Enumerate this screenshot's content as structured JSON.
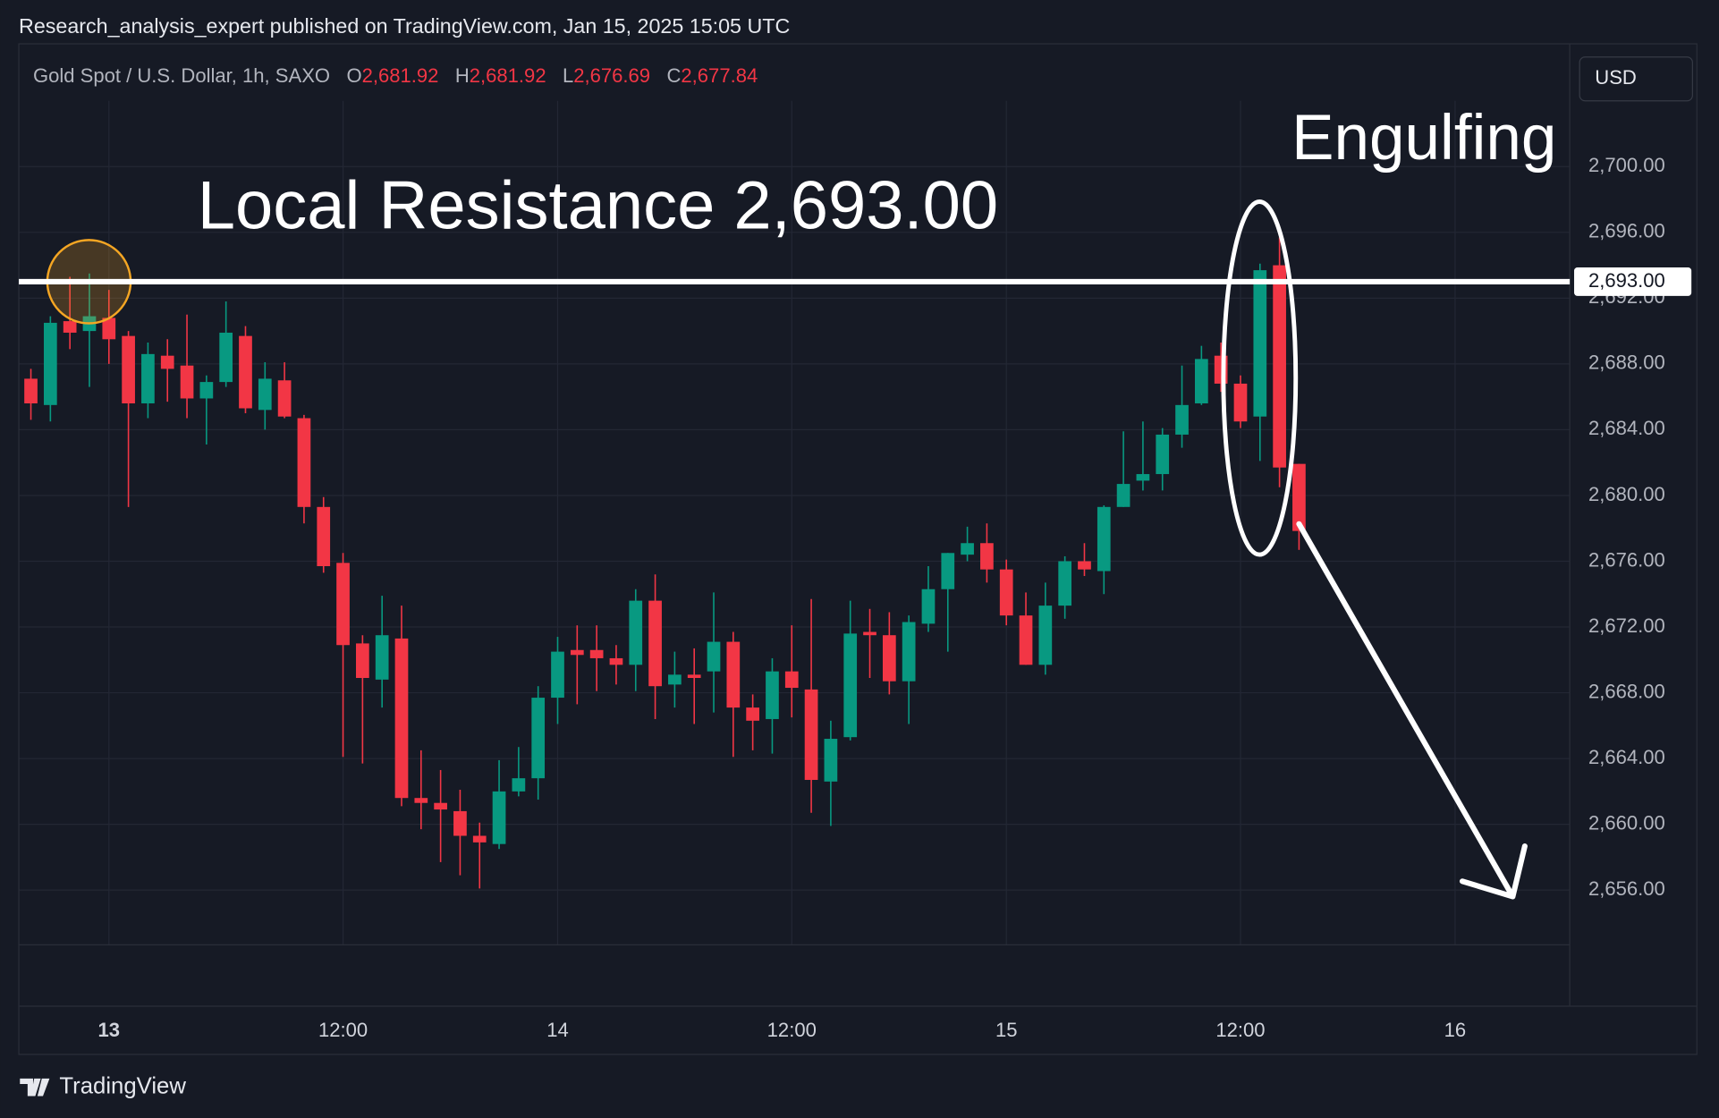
{
  "header": {
    "publisher": "Research_analysis_expert published on TradingView.com, Jan 15, 2025 15:05 UTC",
    "symbol": "Gold Spot / U.S. Dollar, 1h, SAXO",
    "ohlc": [
      {
        "key": "O",
        "value": "2,681.92"
      },
      {
        "key": "H",
        "value": "2,681.92"
      },
      {
        "key": "L",
        "value": "2,676.69"
      },
      {
        "key": "C",
        "value": "2,677.84"
      }
    ],
    "currency": "USD"
  },
  "chart_data": {
    "type": "candlestick",
    "categories": [
      null,
      null,
      null,
      null,
      "13",
      null,
      null,
      null,
      null,
      null,
      null,
      null,
      null,
      null,
      null,
      null,
      "12:00",
      null,
      null,
      null,
      null,
      null,
      null,
      null,
      null,
      null,
      null,
      "14",
      null,
      null,
      null,
      null,
      null,
      null,
      null,
      null,
      null,
      null,
      null,
      "12:00",
      null,
      null,
      null,
      null,
      null,
      null,
      null,
      null,
      null,
      null,
      "15",
      null,
      null,
      null,
      null,
      null,
      null,
      null,
      null,
      null,
      null,
      null,
      "12:00",
      null,
      null,
      null,
      null,
      null,
      null,
      null,
      null,
      null,
      null,
      "16",
      null,
      null,
      null,
      null,
      null
    ],
    "open": [
      2687.1,
      2685.5,
      2690.6,
      2690.0,
      2690.8,
      2689.7,
      2685.6,
      2688.5,
      2687.9,
      2685.9,
      2686.9,
      2689.7,
      2685.2,
      2687.0,
      2684.7,
      2679.3,
      2675.9,
      2671.0,
      2668.8,
      2671.3,
      2661.6,
      2661.3,
      2660.8,
      2659.3,
      2658.8,
      2662.0,
      2662.8,
      2667.7,
      2670.6,
      2670.6,
      2670.1,
      2669.7,
      2673.6,
      2668.5,
      2669.1,
      2669.3,
      2671.1,
      2667.1,
      2666.4,
      2669.3,
      2668.2,
      2662.6,
      2665.3,
      2671.7,
      2671.5,
      2668.7,
      2672.2,
      2674.3,
      2676.4,
      2677.1,
      2675.5,
      2672.7,
      2669.7,
      2673.3,
      2676.0,
      2675.4,
      2679.3,
      2680.9,
      2681.3,
      2683.7,
      2685.6,
      2688.5,
      2686.8,
      2684.8,
      2694.0,
      2681.92,
      null,
      null,
      null,
      null,
      null,
      null,
      null,
      null,
      null,
      null,
      null,
      null,
      null
    ],
    "high": [
      2687.7,
      2690.9,
      2693.3,
      2693.5,
      2692.5,
      2690.0,
      2689.3,
      2689.5,
      2691.0,
      2687.3,
      2691.8,
      2690.3,
      2688.1,
      2688.1,
      2684.9,
      2679.9,
      2676.5,
      2671.5,
      2673.9,
      2673.3,
      2664.5,
      2663.3,
      2662.1,
      2660.1,
      2663.9,
      2664.7,
      2668.4,
      2671.4,
      2672.1,
      2672.1,
      2670.9,
      2674.3,
      2675.2,
      2670.5,
      2670.7,
      2674.1,
      2671.7,
      2667.9,
      2670.1,
      2672.1,
      2673.7,
      2666.3,
      2673.6,
      2673.1,
      2672.9,
      2672.7,
      2675.7,
      2676.5,
      2678.1,
      2678.3,
      2676.1,
      2674.1,
      2674.7,
      2676.3,
      2677.1,
      2679.4,
      2683.9,
      2684.5,
      2684.1,
      2687.9,
      2689.1,
      2689.3,
      2687.3,
      2694.1,
      2695.7,
      2681.92,
      null,
      null,
      null,
      null,
      null,
      null,
      null,
      null,
      null,
      null,
      null,
      null,
      null
    ],
    "low": [
      2684.6,
      2684.5,
      2688.9,
      2686.6,
      2688.0,
      2679.3,
      2684.7,
      2685.7,
      2684.7,
      2683.1,
      2686.6,
      2685.0,
      2684.0,
      2684.7,
      2678.3,
      2675.3,
      2664.1,
      2663.7,
      2667.1,
      2661.1,
      2659.7,
      2657.7,
      2656.9,
      2656.1,
      2658.5,
      2661.7,
      2661.5,
      2666.1,
      2667.3,
      2668.1,
      2668.5,
      2668.1,
      2666.4,
      2667.1,
      2666.1,
      2666.8,
      2664.1,
      2664.5,
      2664.3,
      2666.5,
      2660.7,
      2659.9,
      2665.1,
      2668.9,
      2667.9,
      2666.1,
      2671.7,
      2670.5,
      2676.0,
      2674.7,
      2672.1,
      2669.7,
      2669.1,
      2672.5,
      2675.1,
      2674.0,
      2679.3,
      2680.3,
      2680.3,
      2682.9,
      2685.5,
      2686.3,
      2684.1,
      2682.1,
      2680.5,
      2676.69,
      null,
      null,
      null,
      null,
      null,
      null,
      null,
      null,
      null,
      null,
      null,
      null,
      null
    ],
    "close": [
      2685.6,
      2690.5,
      2689.9,
      2690.9,
      2689.5,
      2685.6,
      2688.6,
      2687.7,
      2685.9,
      2686.9,
      2689.9,
      2685.3,
      2687.1,
      2684.8,
      2679.3,
      2675.7,
      2670.9,
      2668.9,
      2671.5,
      2661.6,
      2661.3,
      2660.9,
      2659.3,
      2658.9,
      2662.0,
      2662.8,
      2667.7,
      2670.5,
      2670.3,
      2670.1,
      2669.7,
      2673.6,
      2668.4,
      2669.1,
      2668.9,
      2671.1,
      2667.1,
      2666.3,
      2669.3,
      2668.3,
      2662.7,
      2665.2,
      2671.6,
      2671.5,
      2668.7,
      2672.3,
      2674.3,
      2676.5,
      2677.1,
      2675.5,
      2672.7,
      2669.7,
      2673.3,
      2676.0,
      2675.5,
      2679.3,
      2680.7,
      2681.3,
      2683.7,
      2685.5,
      2688.3,
      2686.8,
      2684.5,
      2693.7,
      2681.7,
      2677.84,
      null,
      null,
      null,
      null,
      null,
      null,
      null,
      null,
      null,
      null,
      null,
      null,
      null
    ],
    "up_color": "#089981",
    "down_color": "#f23645",
    "ylim": [
      2652.67,
      2704
    ],
    "yticks": [
      {
        "value": 2656,
        "label": "2,656.00"
      },
      {
        "value": 2660,
        "label": "2,660.00"
      },
      {
        "value": 2664,
        "label": "2,664.00"
      },
      {
        "value": 2668,
        "label": "2,668.00"
      },
      {
        "value": 2672,
        "label": "2,672.00"
      },
      {
        "value": 2676,
        "label": "2,676.00"
      },
      {
        "value": 2680,
        "label": "2,680.00"
      },
      {
        "value": 2684,
        "label": "2,684.00"
      },
      {
        "value": 2688,
        "label": "2,688.00"
      },
      {
        "value": 2692,
        "label": "2,692.00"
      },
      {
        "value": 2696,
        "label": "2,696.00"
      },
      {
        "value": 2700,
        "label": "2,700.00"
      }
    ],
    "grid": true,
    "resistance": {
      "text": "Local Resistance 2,693.00",
      "value": 2693,
      "label": "2,693.00"
    },
    "pattern_label": "Engulfing"
  },
  "footer": {
    "brand": "TradingView"
  }
}
